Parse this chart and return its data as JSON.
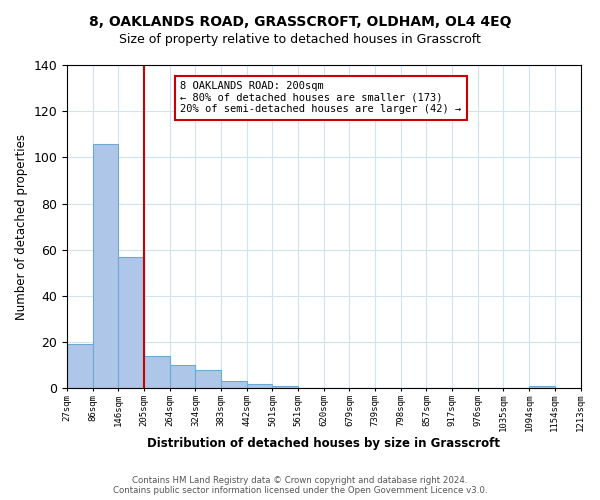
{
  "title": "8, OAKLANDS ROAD, GRASSCROFT, OLDHAM, OL4 4EQ",
  "subtitle": "Size of property relative to detached houses in Grasscroft",
  "xlabel": "Distribution of detached houses by size in Grasscroft",
  "ylabel": "Number of detached properties",
  "bar_values": [
    19,
    106,
    57,
    14,
    10,
    8,
    3,
    2,
    1,
    0,
    0,
    0,
    0,
    0,
    0,
    0,
    0,
    0,
    1
  ],
  "bin_labels": [
    "27sqm",
    "86sqm",
    "146sqm",
    "205sqm",
    "264sqm",
    "324sqm",
    "383sqm",
    "442sqm",
    "501sqm",
    "561sqm",
    "620sqm",
    "679sqm",
    "739sqm",
    "798sqm",
    "857sqm",
    "917sqm",
    "976sqm",
    "1035sqm",
    "1094sqm",
    "1154sqm",
    "1213sqm"
  ],
  "bar_color": "#aec6e8",
  "bar_edge_color": "#6aaad4",
  "vline_x": 3,
  "vline_color": "#cc0000",
  "annotation_line1": "8 OAKLANDS ROAD: 200sqm",
  "annotation_line2": "← 80% of detached houses are smaller (173)",
  "annotation_line3": "20% of semi-detached houses are larger (42) →",
  "annotation_box_color": "#ffffff",
  "annotation_box_edge": "#cc0000",
  "ylim": [
    0,
    140
  ],
  "yticks": [
    0,
    20,
    40,
    60,
    80,
    100,
    120,
    140
  ],
  "footer_line1": "Contains HM Land Registry data © Crown copyright and database right 2024.",
  "footer_line2": "Contains public sector information licensed under the Open Government Licence v3.0.",
  "background_color": "#ffffff",
  "grid_color": "#d0e4f0"
}
